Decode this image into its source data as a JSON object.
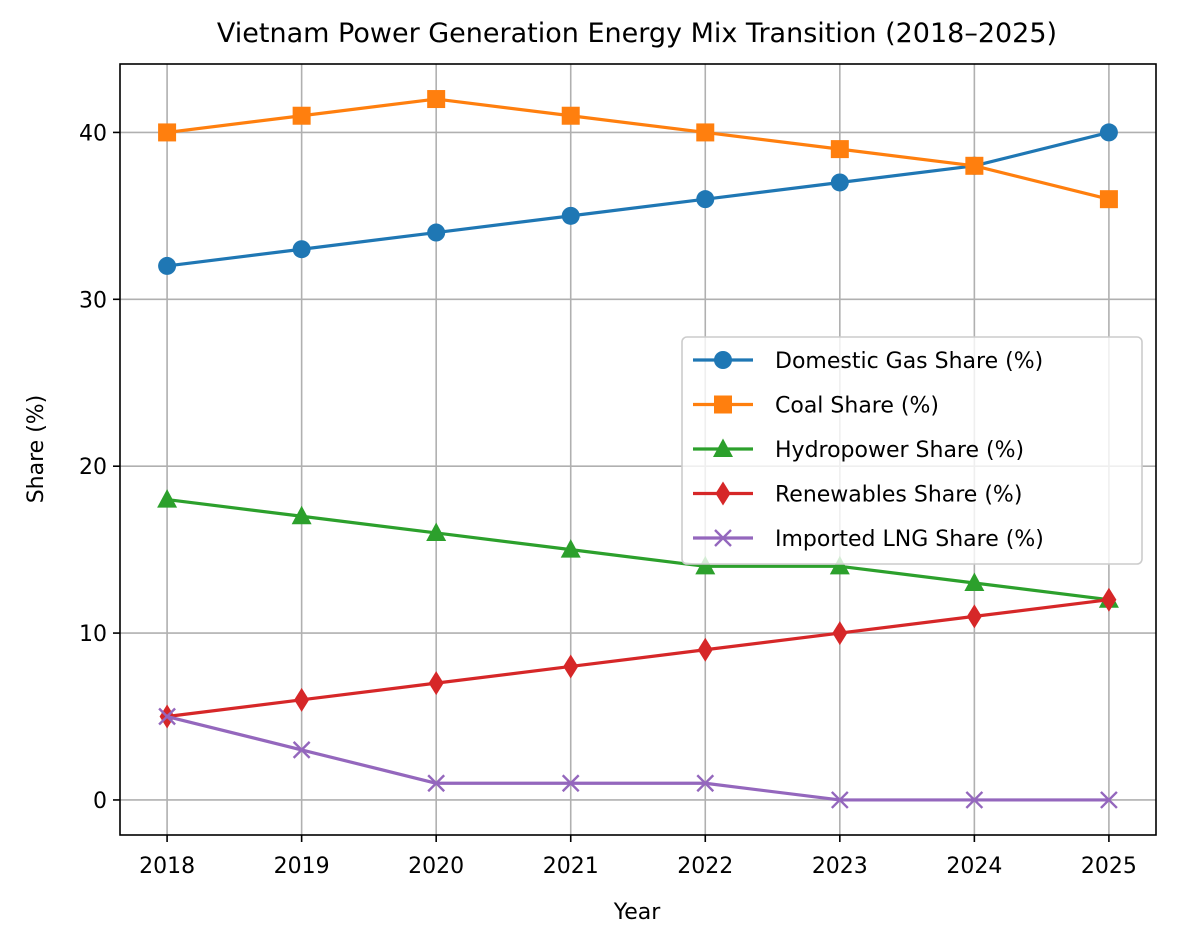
{
  "chart_data": {
    "type": "line",
    "title": "Vietnam Power Generation Energy Mix Transition (2018–2025)",
    "xlabel": "Year",
    "ylabel": "Share (%)",
    "x": [
      2018,
      2019,
      2020,
      2021,
      2022,
      2023,
      2024,
      2025
    ],
    "x_tick_labels": [
      "2018",
      "2019",
      "2020",
      "2021",
      "2022",
      "2023",
      "2024",
      "2025"
    ],
    "y_ticks": [
      0,
      10,
      20,
      30,
      40
    ],
    "y_tick_labels": [
      "0",
      "10",
      "20",
      "30",
      "40"
    ],
    "xlim": [
      2017.65,
      2025.35
    ],
    "ylim": [
      -2.1,
      44.1
    ],
    "grid": true,
    "legend_position": "center-right",
    "series": [
      {
        "name": "Domestic Gas Share (%)",
        "values": [
          32,
          33,
          34,
          35,
          36,
          37,
          38,
          40
        ],
        "color": "#1f77b4",
        "marker": "circle"
      },
      {
        "name": "Coal Share (%)",
        "values": [
          40,
          41,
          42,
          41,
          40,
          39,
          38,
          36
        ],
        "color": "#ff7f0e",
        "marker": "square"
      },
      {
        "name": "Hydropower Share (%)",
        "values": [
          18,
          17,
          16,
          15,
          14,
          14,
          13,
          12
        ],
        "color": "#2ca02c",
        "marker": "triangle"
      },
      {
        "name": "Renewables Share (%)",
        "values": [
          5,
          6,
          7,
          8,
          9,
          10,
          11,
          12
        ],
        "color": "#d62728",
        "marker": "diamond"
      },
      {
        "name": "Imported LNG Share (%)",
        "values": [
          5,
          3,
          1,
          1,
          1,
          0,
          0,
          0
        ],
        "color": "#9467bd",
        "marker": "x"
      }
    ]
  }
}
